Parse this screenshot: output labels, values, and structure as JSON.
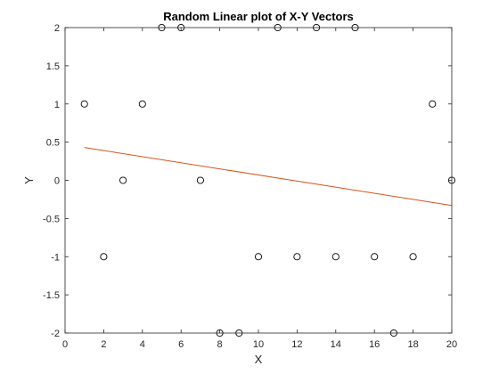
{
  "chart_data": {
    "type": "scatter",
    "title": "Random Linear plot of X-Y Vectors",
    "xlabel": "X",
    "ylabel": "Y",
    "xlim": [
      0,
      20
    ],
    "ylim": [
      -2,
      2
    ],
    "xticks": [
      0,
      2,
      4,
      6,
      8,
      10,
      12,
      14,
      16,
      18,
      20
    ],
    "xtick_labels": [
      "0",
      "2",
      "4",
      "6",
      "8",
      "10",
      "12",
      "14",
      "16",
      "18",
      "20"
    ],
    "yticks": [
      -2,
      -1.5,
      -1,
      -0.5,
      0,
      0.5,
      1,
      1.5,
      2
    ],
    "ytick_labels": [
      "-2",
      "-1.5",
      "-1",
      "-0.5",
      "0",
      "0.5",
      "1",
      "1.5",
      "2"
    ],
    "grid": false,
    "series": [
      {
        "type": "scatter",
        "marker": "circle-open",
        "color": "#000000",
        "x": [
          1,
          2,
          3,
          4,
          5,
          6,
          7,
          8,
          9,
          10,
          11,
          12,
          13,
          14,
          15,
          16,
          17,
          18,
          19,
          20
        ],
        "y": [
          1,
          -1,
          0,
          1,
          2,
          2,
          0,
          -2,
          -2,
          -1,
          2,
          -1,
          2,
          -1,
          2,
          -1,
          -2,
          -1,
          1,
          0
        ]
      },
      {
        "type": "line",
        "color": "#D95319",
        "x": [
          1,
          20
        ],
        "y": [
          0.43,
          -0.33
        ]
      }
    ]
  }
}
